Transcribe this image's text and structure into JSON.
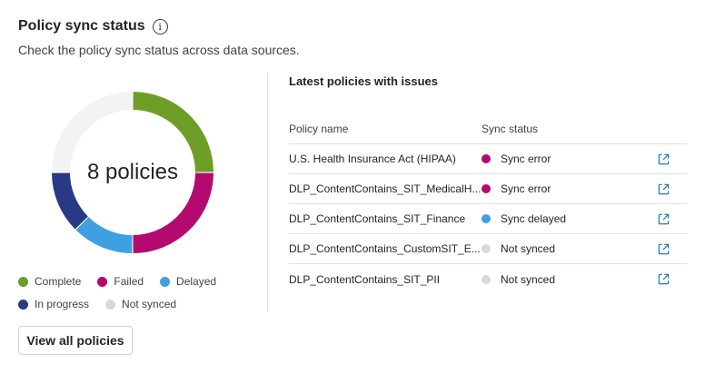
{
  "header": {
    "title": "Policy sync status",
    "subtitle": "Check the policy sync status across data sources."
  },
  "donut": {
    "center_label": "8 policies",
    "segments": [
      {
        "name": "Complete",
        "value": 2,
        "color": "#6e9e27"
      },
      {
        "name": "Failed",
        "value": 2,
        "color": "#b4096e"
      },
      {
        "name": "Delayed",
        "value": 1,
        "color": "#3f9fe3"
      },
      {
        "name": "In progress",
        "value": 1,
        "color": "#283a86"
      },
      {
        "name": "Not synced",
        "value": 2,
        "color": "#f3f3f3"
      }
    ]
  },
  "legend": [
    {
      "label": "Complete",
      "color": "#6e9e27"
    },
    {
      "label": "Failed",
      "color": "#b4096e"
    },
    {
      "label": "Delayed",
      "color": "#3f9fe3"
    },
    {
      "label": "In progress",
      "color": "#283a86"
    },
    {
      "label": "Not synced",
      "color": "#d9d9d9"
    }
  ],
  "view_all_label": "View all policies",
  "issues": {
    "title": "Latest policies with issues",
    "columns": {
      "name": "Policy name",
      "status": "Sync status"
    },
    "rows": [
      {
        "name": "U.S. Health Insurance Act (HIPAA)",
        "status": "Sync error",
        "color": "#b4096e"
      },
      {
        "name": "DLP_ContentContains_SIT_MedicalH...",
        "status": "Sync error",
        "color": "#b4096e"
      },
      {
        "name": "DLP_ContentContains_SIT_Finance",
        "status": "Sync delayed",
        "color": "#3f9fe3"
      },
      {
        "name": "DLP_ContentContains_CustomSIT_E...",
        "status": "Not synced",
        "color": "#d9d9d9"
      },
      {
        "name": "DLP_ContentContains_SIT_PII",
        "status": "Not synced",
        "color": "#d9d9d9"
      }
    ]
  },
  "icons": {
    "info": "info-icon",
    "external_link": "open-in-new-icon"
  }
}
